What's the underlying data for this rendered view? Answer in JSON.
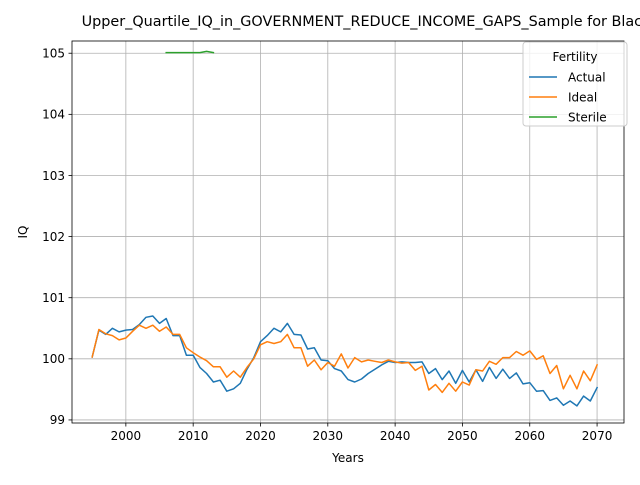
{
  "chart_data": {
    "type": "line",
    "title": "Upper_Quartile_IQ_in_GOVERNMENT_REDUCE_INCOME_GAPS_Sample for Black",
    "xlabel": "Years",
    "ylabel": "IQ",
    "xlim": [
      1992,
      2074
    ],
    "ylim": [
      98.95,
      105.2
    ],
    "x_ticks": [
      2000,
      2010,
      2020,
      2030,
      2040,
      2050,
      2060,
      2070
    ],
    "y_ticks": [
      99,
      100,
      101,
      102,
      103,
      104,
      105
    ],
    "grid": true,
    "legend": {
      "title": "Fertility",
      "position": "top-right"
    },
    "series": [
      {
        "name": "Actual",
        "color": "#1f77b4",
        "x": [
          1995,
          1996,
          1997,
          1998,
          1999,
          2000,
          2001,
          2002,
          2003,
          2004,
          2005,
          2006,
          2007,
          2008,
          2009,
          2010,
          2011,
          2012,
          2013,
          2014,
          2015,
          2016,
          2017,
          2018,
          2019,
          2020,
          2021,
          2022,
          2023,
          2024,
          2025,
          2026,
          2027,
          2028,
          2029,
          2030,
          2031,
          2032,
          2033,
          2034,
          2035,
          2036,
          2037,
          2038,
          2039,
          2040,
          2041,
          2042,
          2043,
          2044,
          2045,
          2046,
          2047,
          2048,
          2049,
          2050,
          2051,
          2052,
          2053,
          2054,
          2055,
          2056,
          2057,
          2058,
          2059,
          2060,
          2061,
          2062,
          2063,
          2064,
          2065,
          2066,
          2067,
          2068,
          2069,
          2070
        ],
        "values": [
          100.03,
          100.47,
          100.4,
          100.5,
          100.44,
          100.47,
          100.48,
          100.56,
          100.68,
          100.7,
          100.58,
          100.66,
          100.38,
          100.38,
          100.06,
          100.06,
          99.86,
          99.76,
          99.62,
          99.65,
          99.47,
          99.51,
          99.6,
          99.83,
          100.02,
          100.28,
          100.38,
          100.5,
          100.44,
          100.58,
          100.4,
          100.39,
          100.16,
          100.18,
          99.98,
          99.97,
          99.84,
          99.8,
          99.66,
          99.62,
          99.67,
          99.76,
          99.83,
          99.9,
          99.96,
          99.94,
          99.95,
          99.94,
          99.94,
          99.95,
          99.76,
          99.84,
          99.66,
          99.8,
          99.6,
          99.81,
          99.62,
          99.82,
          99.63,
          99.86,
          99.68,
          99.83,
          99.68,
          99.77,
          99.59,
          99.61,
          99.47,
          99.48,
          99.32,
          99.36,
          99.24,
          99.31,
          99.23,
          99.39,
          99.31,
          99.53
        ]
      },
      {
        "name": "Ideal",
        "color": "#ff7f0e",
        "x": [
          1995,
          1996,
          1997,
          1998,
          1999,
          2000,
          2001,
          2002,
          2003,
          2004,
          2005,
          2006,
          2007,
          2008,
          2009,
          2010,
          2011,
          2012,
          2013,
          2014,
          2015,
          2016,
          2017,
          2018,
          2019,
          2020,
          2021,
          2022,
          2023,
          2024,
          2025,
          2026,
          2027,
          2028,
          2029,
          2030,
          2031,
          2032,
          2033,
          2034,
          2035,
          2036,
          2037,
          2038,
          2039,
          2040,
          2041,
          2042,
          2043,
          2044,
          2045,
          2046,
          2047,
          2048,
          2049,
          2050,
          2051,
          2052,
          2053,
          2054,
          2055,
          2056,
          2057,
          2058,
          2059,
          2060,
          2061,
          2062,
          2063,
          2064,
          2065,
          2066,
          2067,
          2068,
          2069,
          2070
        ],
        "values": [
          100.03,
          100.48,
          100.41,
          100.38,
          100.31,
          100.34,
          100.45,
          100.55,
          100.5,
          100.55,
          100.45,
          100.52,
          100.4,
          100.4,
          100.18,
          100.1,
          100.03,
          99.97,
          99.87,
          99.87,
          99.7,
          99.8,
          99.7,
          99.86,
          100.0,
          100.23,
          100.28,
          100.25,
          100.28,
          100.4,
          100.18,
          100.18,
          99.88,
          99.98,
          99.82,
          99.94,
          99.88,
          100.08,
          99.85,
          100.02,
          99.95,
          99.98,
          99.96,
          99.94,
          99.98,
          99.95,
          99.93,
          99.94,
          99.81,
          99.88,
          99.49,
          99.58,
          99.45,
          99.6,
          99.47,
          99.62,
          99.57,
          99.82,
          99.8,
          99.96,
          99.91,
          100.02,
          100.02,
          100.12,
          100.06,
          100.13,
          99.99,
          100.05,
          99.76,
          99.89,
          99.51,
          99.73,
          99.51,
          99.8,
          99.64,
          99.9
        ]
      },
      {
        "name": "Sterile",
        "color": "#2ca02c",
        "x": [
          2006,
          2007,
          2008,
          2009,
          2010,
          2011,
          2012,
          2013
        ],
        "values": [
          105.01,
          105.01,
          105.01,
          105.01,
          105.01,
          105.01,
          105.03,
          105.01
        ]
      }
    ]
  }
}
